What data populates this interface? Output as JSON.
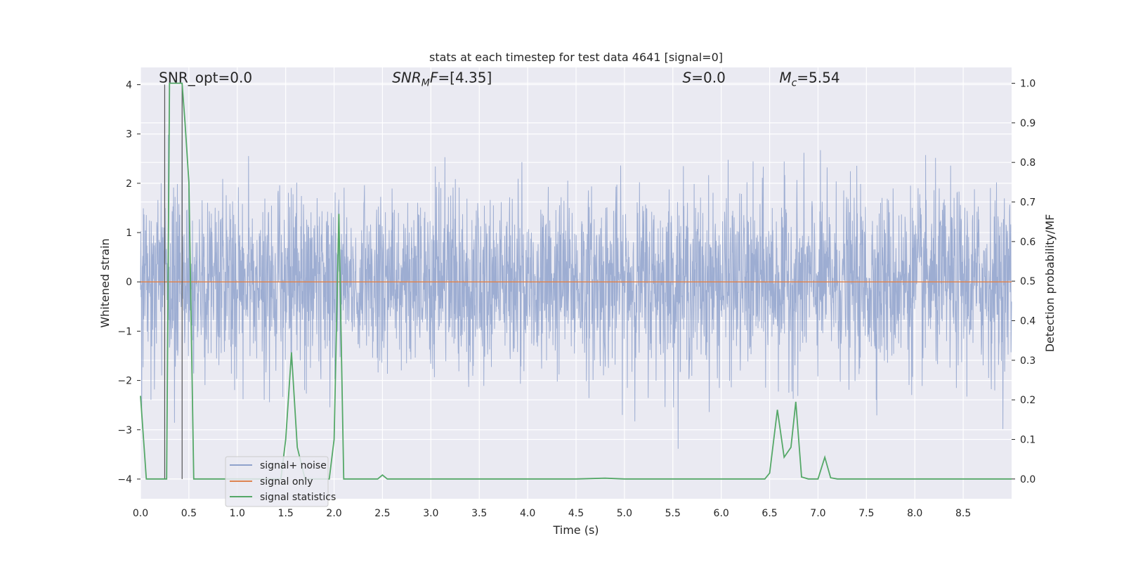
{
  "chart_data": {
    "type": "line",
    "title": "stats at each timestep for test data 4641 [signal=0]",
    "xlabel": "Time (s)",
    "ylabel_left": "Whitened strain",
    "ylabel_right": "Detection probability/MF",
    "xlim": [
      0.0,
      9.0
    ],
    "ylim_left": [
      -4.4,
      4.35
    ],
    "ylim_right": [
      -0.05,
      1.04
    ],
    "grid": true,
    "x_ticks": [
      "0.0",
      "0.5",
      "1.0",
      "1.5",
      "2.0",
      "2.5",
      "3.0",
      "3.5",
      "4.0",
      "4.5",
      "5.0",
      "5.5",
      "6.0",
      "6.5",
      "7.0",
      "7.5",
      "8.0",
      "8.5"
    ],
    "y_ticks_left": [
      "4",
      "3",
      "2",
      "1",
      "0",
      "−1",
      "−2",
      "−3",
      "−4"
    ],
    "y_ticks_right": [
      "1.0",
      "0.9",
      "0.8",
      "0.7",
      "0.6",
      "0.5",
      "0.4",
      "0.3",
      "0.2",
      "0.1",
      "0.0"
    ],
    "annotations": [
      {
        "text": "SNR_opt=0.0",
        "x": 0.19,
        "y": 4.1
      },
      {
        "text": "SNR_MF=[4.35]",
        "x": 2.6,
        "y": 4.1
      },
      {
        "text": "S=0.0",
        "x": 5.6,
        "y": 4.1
      },
      {
        "text": "M_c=5.54",
        "x": 6.6,
        "y": 4.1
      }
    ],
    "legend": {
      "position": "lower-left",
      "entries": [
        "signal+ noise",
        "signal only",
        "signal statistics"
      ]
    },
    "vertical_markers": [
      0.25,
      0.43
    ],
    "series": [
      {
        "name": "signal+ noise",
        "axis": "left",
        "color": "#8fa2cc",
        "description_values": {
          "envelope_low": -1.6,
          "envelope_high": 1.55,
          "x_range": [
            0.0,
            9.0
          ]
        }
      },
      {
        "name": "signal only",
        "axis": "left",
        "color": "#dd8452",
        "x": [
          0.0,
          9.0
        ],
        "values": [
          0.0,
          0.0
        ]
      },
      {
        "name": "signal statistics",
        "axis": "right",
        "color": "#55a868",
        "x": [
          0.0,
          0.06,
          0.1,
          0.2,
          0.24,
          0.27,
          0.3,
          0.36,
          0.43,
          0.46,
          0.5,
          0.55,
          1.0,
          1.45,
          1.5,
          1.56,
          1.62,
          1.7,
          1.95,
          2.0,
          2.05,
          2.1,
          2.15,
          2.45,
          2.5,
          2.55,
          4.5,
          4.8,
          5.0,
          6.4,
          6.45,
          6.5,
          6.58,
          6.65,
          6.72,
          6.77,
          6.83,
          6.9,
          7.0,
          7.07,
          7.13,
          7.2,
          9.0
        ],
        "values": [
          0.21,
          0.0,
          0.0,
          0.0,
          0.0,
          0.0,
          1.0,
          1.0,
          1.0,
          0.9,
          0.75,
          0.0,
          0.0,
          0.0,
          0.1,
          0.32,
          0.08,
          0.0,
          0.0,
          0.1,
          0.67,
          0.0,
          0.0,
          0.0,
          0.01,
          0.0,
          0.0,
          0.002,
          0.0,
          0.0,
          0.0,
          0.015,
          0.175,
          0.055,
          0.08,
          0.195,
          0.005,
          0.0,
          0.0,
          0.055,
          0.003,
          0.0,
          0.0
        ]
      }
    ]
  }
}
